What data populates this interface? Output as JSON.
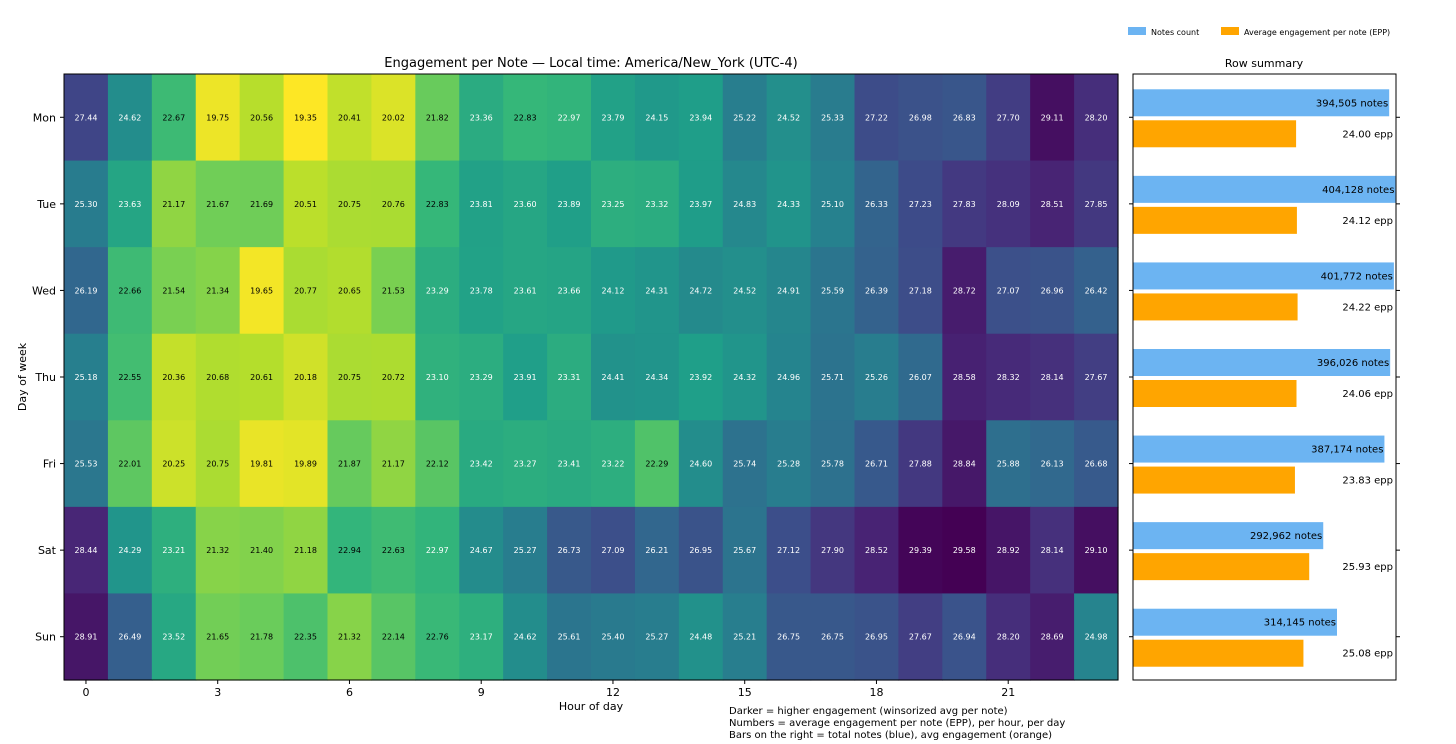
{
  "chart_data": {
    "type": "heatmap",
    "title": "Engagement per Note — Local time: America/New_York (UTC-4)",
    "xlabel": "Hour of day",
    "ylabel": "Day of week",
    "x_ticks": [
      "0",
      "3",
      "6",
      "9",
      "12",
      "15",
      "18",
      "21"
    ],
    "hours": [
      0,
      1,
      2,
      3,
      4,
      5,
      6,
      7,
      8,
      9,
      10,
      11,
      12,
      13,
      14,
      15,
      16,
      17,
      18,
      19,
      20,
      21,
      22,
      23
    ],
    "days": [
      "Mon",
      "Tue",
      "Wed",
      "Thu",
      "Fri",
      "Sat",
      "Sun"
    ],
    "colormap": "viridis_r",
    "color_range": [
      19.5,
      29.5
    ],
    "values": [
      [
        27.44,
        24.62,
        22.67,
        19.75,
        20.56,
        19.35,
        20.41,
        20.02,
        21.82,
        23.36,
        22.83,
        22.97,
        23.79,
        24.15,
        23.94,
        25.22,
        24.52,
        25.33,
        27.22,
        26.98,
        26.83,
        27.7,
        29.11,
        28.2
      ],
      [
        25.3,
        23.63,
        21.17,
        21.67,
        21.69,
        20.51,
        20.75,
        20.76,
        22.83,
        23.81,
        23.6,
        23.89,
        23.25,
        23.32,
        23.97,
        24.83,
        24.33,
        25.1,
        26.33,
        27.23,
        27.83,
        28.09,
        28.51,
        27.85
      ],
      [
        26.19,
        22.66,
        21.54,
        21.34,
        19.65,
        20.77,
        20.65,
        21.53,
        23.29,
        23.78,
        23.61,
        23.66,
        24.12,
        24.31,
        24.72,
        24.52,
        24.91,
        25.59,
        26.39,
        27.18,
        28.72,
        27.07,
        26.96,
        26.42
      ],
      [
        25.18,
        22.55,
        20.36,
        20.68,
        20.61,
        20.18,
        20.75,
        20.72,
        23.1,
        23.29,
        23.91,
        23.31,
        24.41,
        24.34,
        23.92,
        24.32,
        24.96,
        25.71,
        25.26,
        26.07,
        28.58,
        28.32,
        28.14,
        27.67
      ],
      [
        25.53,
        22.01,
        20.25,
        20.75,
        19.81,
        19.89,
        21.87,
        21.17,
        22.12,
        23.42,
        23.27,
        23.41,
        23.22,
        22.29,
        24.6,
        25.74,
        25.28,
        25.78,
        26.71,
        27.88,
        28.84,
        25.88,
        26.13,
        26.68
      ],
      [
        28.44,
        24.29,
        23.21,
        21.32,
        21.4,
        21.18,
        22.94,
        22.63,
        22.97,
        24.67,
        25.27,
        26.73,
        27.09,
        26.21,
        26.95,
        25.67,
        27.12,
        27.9,
        28.52,
        29.39,
        29.58,
        28.92,
        28.14,
        29.1
      ],
      [
        28.91,
        26.49,
        23.52,
        21.65,
        21.78,
        22.35,
        21.32,
        22.14,
        22.76,
        23.17,
        24.62,
        25.61,
        25.4,
        25.27,
        24.48,
        25.21,
        26.75,
        26.75,
        26.95,
        27.67,
        26.94,
        28.2,
        28.69,
        24.98
      ]
    ],
    "cell_labels": [
      [
        "27.44",
        "24.62",
        "22.67",
        "19.75",
        "20.56",
        "19.35",
        "20.41",
        "20.02",
        "21.82",
        "23.36",
        "22.83",
        "22.97",
        "23.79",
        "24.15",
        "23.94",
        "25.22",
        "24.52",
        "25.33",
        "27.22",
        "26.98",
        "26.83",
        "27.70",
        "29.11",
        "28.20"
      ],
      [
        "25.30",
        "23.63",
        "21.17",
        "21.67",
        "21.69",
        "20.51",
        "20.75",
        "20.76",
        "22.83",
        "23.81",
        "23.60",
        "23.89",
        "23.25",
        "23.32",
        "23.97",
        "24.83",
        "24.33",
        "25.10",
        "26.33",
        "27.23",
        "27.83",
        "28.09",
        "28.51",
        "27.85"
      ],
      [
        "26.19",
        "22.66",
        "21.54",
        "21.34",
        "19.65",
        "20.77",
        "20.65",
        "21.53",
        "23.29",
        "23.78",
        "23.61",
        "23.66",
        "24.12",
        "24.31",
        "24.72",
        "24.52",
        "24.91",
        "25.59",
        "26.39",
        "27.18",
        "28.72",
        "27.07",
        "26.96",
        "26.42"
      ],
      [
        "25.18",
        "22.55",
        "20.36",
        "20.68",
        "20.61",
        "20.18",
        "20.75",
        "20.72",
        "23.10",
        "23.29",
        "23.91",
        "23.31",
        "24.41",
        "24.34",
        "23.92",
        "24.32",
        "24.96",
        "25.71",
        "25.26",
        "26.07",
        "28.58",
        "28.32",
        "28.14",
        "27.67"
      ],
      [
        "25.53",
        "22.01",
        "20.25",
        "20.75",
        "19.81",
        "19.89",
        "21.87",
        "21.17",
        "22.12",
        "23.42",
        "23.27",
        "23.41",
        "23.22",
        "22.29",
        "24.60",
        "25.74",
        "25.28",
        "25.78",
        "26.71",
        "27.88",
        "28.84",
        "25.88",
        "26.13",
        "26.68"
      ],
      [
        "28.44",
        "24.29",
        "23.21",
        "21.32",
        "21.40",
        "21.18",
        "22.94",
        "22.63",
        "22.97",
        "24.67",
        "25.27",
        "26.73",
        "27.09",
        "26.21",
        "26.95",
        "25.67",
        "27.12",
        "27.90",
        "28.52",
        "29.39",
        "29.58",
        "28.92",
        "28.14",
        "29.10"
      ],
      [
        "28.91",
        "26.49",
        "23.52",
        "21.65",
        "21.78",
        "22.35",
        "21.32",
        "22.14",
        "22.76",
        "23.17",
        "24.62",
        "25.61",
        "25.40",
        "25.27",
        "24.48",
        "25.21",
        "26.75",
        "26.75",
        "26.95",
        "27.67",
        "26.94",
        "28.20",
        "28.69",
        "24.98"
      ]
    ],
    "row_summary": {
      "title": "Row summary",
      "xlim": [
        0,
        405000
      ],
      "notes_count": [
        394505,
        404128,
        401772,
        396026,
        387174,
        292962,
        314145
      ],
      "notes_labels": [
        "394,505 notes",
        "404,128 notes",
        "401,772 notes",
        "396,026 notes",
        "387,174 notes",
        "292,962 notes",
        "314,145 notes"
      ],
      "avg_epp": [
        24.0,
        24.12,
        24.22,
        24.06,
        23.83,
        25.93,
        25.08
      ],
      "epp_labels": [
        "24.00 epp",
        "24.12 epp",
        "24.22 epp",
        "24.06 epp",
        "23.83 epp",
        "25.93 epp",
        "25.08 epp"
      ],
      "legend": [
        {
          "label": "Notes count",
          "color": "#6cb4f2"
        },
        {
          "label": "Average engagement per note (EPP)",
          "color": "#ffa500"
        }
      ],
      "legend_position": "top-right"
    },
    "footnotes": [
      "Darker = higher engagement (winsorized avg per note)",
      "Numbers = average engagement per note (EPP), per hour, per day",
      "Bars on the right = total notes (blue), avg engagement (orange)"
    ]
  }
}
